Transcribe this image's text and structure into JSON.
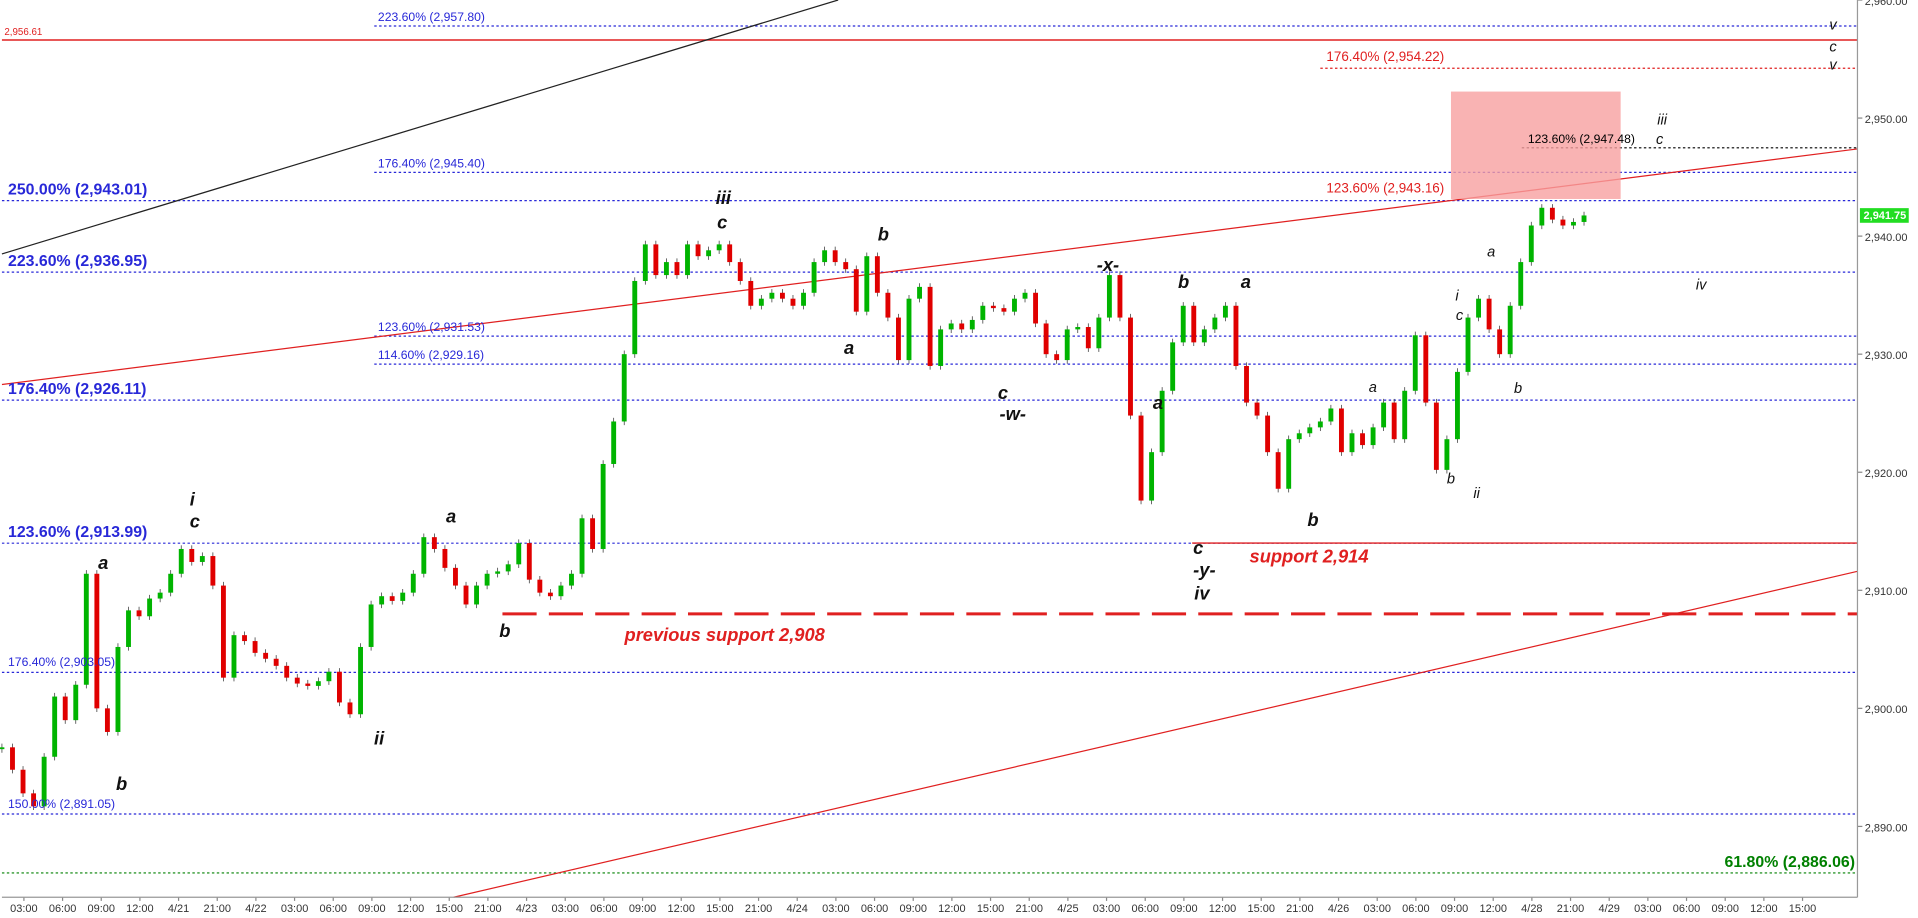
{
  "chart_data": {
    "type": "candlestick",
    "ylim": [
      2884,
      2960
    ],
    "yticks": [
      {
        "value": 2960,
        "label": "2,960.00"
      },
      {
        "value": 2950,
        "label": "2,950.00"
      },
      {
        "value": 2940,
        "label": "2,940.00"
      },
      {
        "value": 2930,
        "label": "2,930.00"
      },
      {
        "value": 2920,
        "label": "2,920.00"
      },
      {
        "value": 2910,
        "label": "2,910.00"
      },
      {
        "value": 2900,
        "label": "2,900.00"
      },
      {
        "value": 2890,
        "label": "2,890.00"
      }
    ],
    "x_labels": [
      "03:00",
      "06:00",
      "09:00",
      "12:00",
      "4/21",
      "21:00",
      "4/22",
      "03:00",
      "06:00",
      "09:00",
      "12:00",
      "15:00",
      "21:00",
      "4/23",
      "03:00",
      "06:00",
      "09:00",
      "12:00",
      "15:00",
      "21:00",
      "4/24",
      "03:00",
      "06:00",
      "09:00",
      "12:00",
      "15:00",
      "21:00",
      "4/25",
      "03:00",
      "06:00",
      "09:00",
      "12:00",
      "15:00",
      "21:00",
      "4/26",
      "03:00",
      "06:00",
      "09:00",
      "12:00",
      "4/28",
      "21:00",
      "4/29",
      "03:00",
      "06:00",
      "09:00",
      "12:00",
      "15:00"
    ],
    "up_color": "#00b400",
    "down_color": "#e00000",
    "values": [
      2896.7,
      2894.8,
      2892.8,
      2891.7,
      2895.9,
      2901,
      2899,
      2902,
      2911.4,
      2900,
      2898,
      2905.2,
      2908.3,
      2907.8,
      2909.3,
      2909.8,
      2911.4,
      2913.5,
      2912.4,
      2912.9,
      2910.4,
      2902.6,
      2906.2,
      2905.7,
      2904.7,
      2904.2,
      2903.6,
      2902.6,
      2902.1,
      2901.9,
      2902.3,
      2903.1,
      2900.5,
      2899.5,
      2905.2,
      2908.8,
      2909.5,
      2909.1,
      2909.8,
      2911.4,
      2914.5,
      2913.5,
      2911.9,
      2910.4,
      2908.8,
      2910.4,
      2911.4,
      2911.6,
      2912.2,
      2914,
      2910.9,
      2909.8,
      2909.5,
      2910.4,
      2911.4,
      2916.1,
      2913.5,
      2920.7,
      2924.3,
      2930,
      2936.2,
      2939.3,
      2936.7,
      2937.8,
      2936.7,
      2939.3,
      2938.3,
      2938.8,
      2939.3,
      2937.8,
      2936.2,
      2934.1,
      2934.7,
      2935.2,
      2934.7,
      2934.1,
      2935.2,
      2937.8,
      2938.8,
      2937.8,
      2937.2,
      2933.6,
      2938.3,
      2935.2,
      2933.1,
      2929.5,
      2934.7,
      2935.7,
      2929,
      2932.1,
      2932.6,
      2932.1,
      2932.9,
      2934.1,
      2933.9,
      2933.6,
      2934.7,
      2935.2,
      2932.6,
      2930,
      2929.5,
      2932.1,
      2932.3,
      2930.5,
      2933.1,
      2936.7,
      2933.1,
      2924.8,
      2917.6,
      2921.7,
      2926.9,
      2931,
      2934.1,
      2931,
      2932.1,
      2933.1,
      2934.1,
      2929,
      2925.9,
      2924.8,
      2921.7,
      2918.6,
      2922.8,
      2923.3,
      2923.8,
      2924.3,
      2925.4,
      2921.7,
      2923.3,
      2922.3,
      2923.8,
      2925.9,
      2922.8,
      2926.9,
      2931.6,
      2925.9,
      2920.2,
      2922.8,
      2928.5,
      2933.1,
      2934.7,
      2932.1,
      2930,
      2934.1,
      2937.8,
      2940.9,
      2942.4,
      2941.4,
      2940.9,
      2941.2,
      2941.75
    ],
    "last_price": 2941.75,
    "last_price_label": "2,941.75",
    "levels": [
      {
        "label": "223.60% (2,957.80)",
        "value": 2957.8,
        "color": "#2828d8",
        "style": "dotted"
      },
      {
        "label": "2,956.61",
        "value": 2956.61,
        "color": "#e02020",
        "style": "solid"
      },
      {
        "label": "176.40% (2,954.22)",
        "value": 2954.22,
        "color": "#e02020",
        "style": "dotted"
      },
      {
        "label": "123.60% (2,947.48)",
        "value": 2947.48,
        "color": "#000000",
        "style": "dotted"
      },
      {
        "label": "176.40% (2,945.40)",
        "value": 2945.4,
        "color": "#2828d8",
        "style": "dotted"
      },
      {
        "label": "250.00% (2,943.01)",
        "value": 2943.01,
        "color": "#2828d8",
        "style": "dotted"
      },
      {
        "label": "123.60% (2,943.16)",
        "value": 2943.16,
        "color": "#e02020"
      },
      {
        "label": "223.60% (2,936.95)",
        "value": 2936.95,
        "color": "#2828d8",
        "style": "dotted"
      },
      {
        "label": "123.60% (2,931.53)",
        "value": 2931.53,
        "color": "#2828d8",
        "style": "dotted"
      },
      {
        "label": "114.60% (2,929.16)",
        "value": 2929.16,
        "color": "#2828d8",
        "style": "dotted"
      },
      {
        "label": "176.40% (2,926.11)",
        "value": 2926.11,
        "color": "#2828d8",
        "style": "dotted"
      },
      {
        "label": "123.60% (2,913.99)",
        "value": 2913.99,
        "color": "#2828d8",
        "style": "dotted"
      },
      {
        "label": "176.40% (2,903.05)",
        "value": 2903.05,
        "color": "#2828d8",
        "style": "dotted"
      },
      {
        "label": "150.00% (2,891.05)",
        "value": 2891.05,
        "color": "#2828d8",
        "style": "dotted"
      },
      {
        "label": "61.80% (2,886.06)",
        "value": 2886.06,
        "color": "#008000",
        "style": "dotted"
      },
      {
        "label": "support 2,914",
        "value": 2914,
        "color": "#e02020",
        "style": "solid"
      },
      {
        "label": "previous support 2,908",
        "value": 2908,
        "color": "#e02020",
        "style": "dashed"
      }
    ],
    "wave_labels": [
      "a",
      "b",
      "i",
      "c",
      "ii",
      "a",
      "b",
      "iii",
      "c",
      "b",
      "a",
      "c",
      "-w-",
      "-x-",
      "a",
      "b",
      "a",
      "b",
      "c",
      "-y-",
      "iv",
      "a",
      "b",
      "i",
      "c",
      "ii",
      "a",
      "b",
      "iii",
      "c",
      "iv",
      "v",
      "c",
      "v"
    ]
  }
}
